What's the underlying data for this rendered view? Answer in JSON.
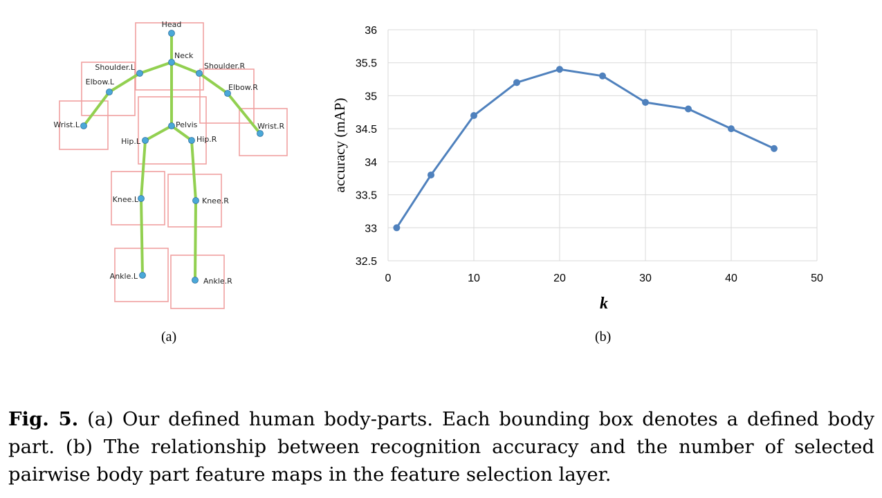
{
  "skeleton": {
    "joints": {
      "head": "Head",
      "neck": "Neck",
      "shoulder_l": "Shoulder.L",
      "shoulder_r": "Shoulder.R",
      "elbow_l": "Elbow.L",
      "elbow_r": "Elbow.R",
      "wrist_l": "Wrist.L",
      "wrist_r": "Wrist.R",
      "pelvis": "Pelvis",
      "hip_l": "Hip.L",
      "hip_r": "Hip.R",
      "knee_l": "Knee.L",
      "knee_r": "Knee.R",
      "ankle_l": "Ankle.L",
      "ankle_r": "Ankle.R"
    },
    "colors": {
      "bone": "#92d050",
      "joint": "#4aa8d8",
      "box": "#f0a0a0"
    }
  },
  "subfig_a_label": "(a)",
  "subfig_b_label": "(b)",
  "chart_data": {
    "type": "line",
    "title": "",
    "xlabel": "k",
    "ylabel": "accuracy (mAP)",
    "x": [
      1,
      5,
      10,
      15,
      20,
      25,
      30,
      35,
      40,
      45
    ],
    "series": [
      {
        "name": "accuracy",
        "values": [
          33.0,
          33.8,
          34.7,
          35.2,
          35.4,
          35.3,
          34.9,
          34.8,
          34.5,
          34.2
        ],
        "color": "#4f81bd"
      }
    ],
    "xlim": [
      0,
      50
    ],
    "ylim": [
      32.5,
      36
    ],
    "xticks": [
      0,
      10,
      20,
      30,
      40,
      50
    ],
    "yticks": [
      32.5,
      33,
      33.5,
      34,
      34.5,
      35,
      35.5,
      36
    ],
    "xtick_labels": [
      "0",
      "10",
      "20",
      "30",
      "40",
      "50"
    ],
    "ytick_labels": [
      "32.5",
      "33",
      "33.5",
      "34",
      "34.5",
      "35",
      "35.5",
      "36"
    ],
    "grid": true
  },
  "caption": {
    "label": "Fig. 5.",
    "text": " (a) Our defined human body-parts. Each bounding box denotes a defined body part. (b) The relationship between recognition accuracy and the number of selected pairwise body part feature maps in the feature selection layer."
  }
}
